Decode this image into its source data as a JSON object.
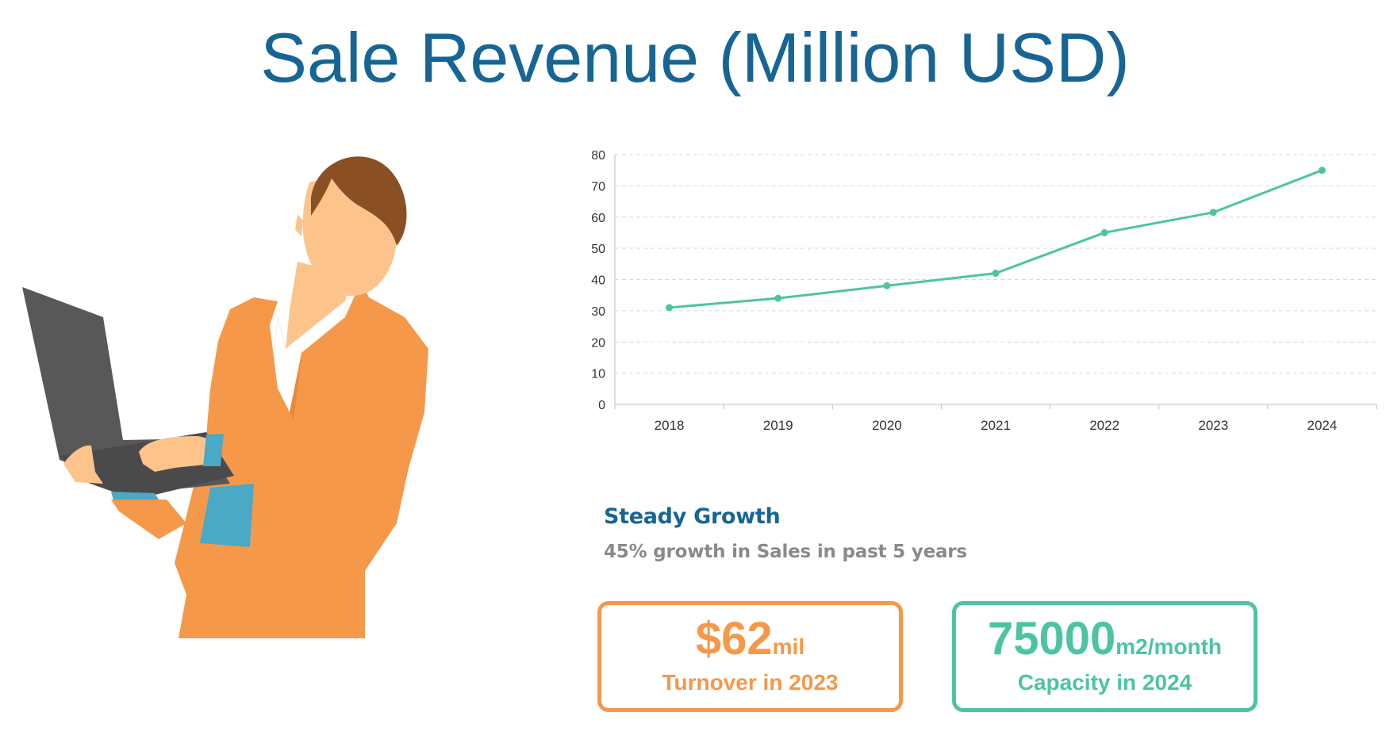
{
  "title": "Sale Revenue (Million USD)",
  "colors": {
    "title": "#176594",
    "line": "#4cc4a3",
    "orange": "#f5984a",
    "green": "#4cc4a3",
    "grid": "#d9d9d9",
    "axis_text": "#333333"
  },
  "chart_data": {
    "type": "line",
    "title": "",
    "xlabel": "",
    "ylabel": "",
    "categories": [
      "2018",
      "2019",
      "2020",
      "2021",
      "2022",
      "2023",
      "2024"
    ],
    "series": [
      {
        "values": [
          31,
          34,
          38,
          42,
          55,
          61.5,
          75
        ]
      }
    ],
    "ylim": [
      0,
      80
    ],
    "yticks": [
      0,
      10,
      20,
      30,
      40,
      50,
      60,
      70,
      80
    ],
    "grid": "horizontal dashed",
    "legend": "none",
    "markers": true
  },
  "summary": {
    "heading": "Steady Growth",
    "text": "45% growth in Sales in past 5 years"
  },
  "stats": [
    {
      "value": "$62",
      "unit": "mil",
      "caption": "Turnover in 2023"
    },
    {
      "value": "75000",
      "unit": "m2/month",
      "caption": "Capacity in 2024"
    }
  ],
  "illustration": {
    "icon": "businesswoman-with-laptop-icon"
  }
}
